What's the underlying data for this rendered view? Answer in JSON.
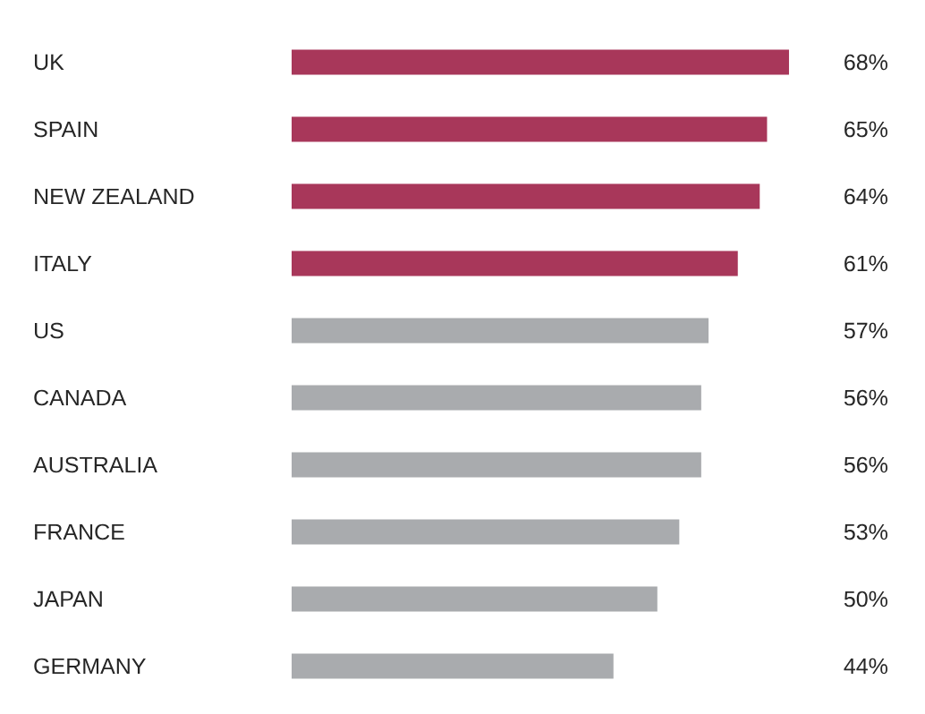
{
  "chart_data": {
    "type": "bar",
    "orientation": "horizontal",
    "categories": [
      "UK",
      "SPAIN",
      "NEW ZEALAND",
      "ITALY",
      "US",
      "CANADA",
      "AUSTRALIA",
      "FRANCE",
      "JAPAN",
      "GERMANY"
    ],
    "values": [
      68,
      65,
      64,
      61,
      57,
      56,
      56,
      53,
      50,
      44
    ],
    "colors": [
      "#a8375a",
      "#a8375a",
      "#a8375a",
      "#a8375a",
      "#a9abae",
      "#a9abae",
      "#a9abae",
      "#a9abae",
      "#a9abae",
      "#a9abae"
    ],
    "value_labels": [
      "68%",
      "65%",
      "64%",
      "61%",
      "57%",
      "56%",
      "56%",
      "53%",
      "50%",
      "44%"
    ]
  }
}
